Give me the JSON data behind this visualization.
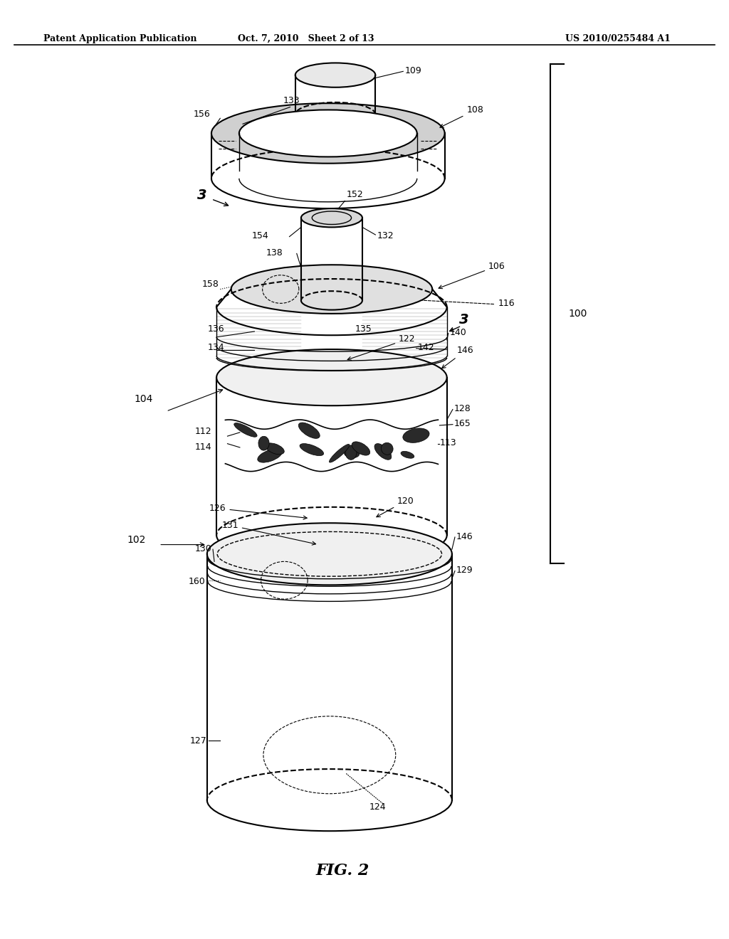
{
  "header_left": "Patent Application Publication",
  "header_mid": "Oct. 7, 2010   Sheet 2 of 13",
  "header_right": "US 2010/0255484 A1",
  "figure_label": "FIG. 2",
  "bg_color": "#ffffff",
  "line_color": "#000000"
}
